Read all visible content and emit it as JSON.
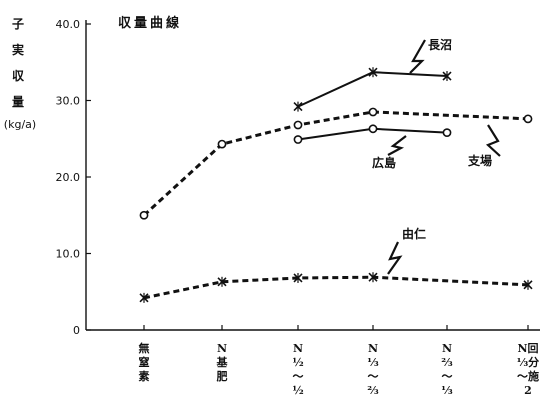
{
  "chart_data": {
    "type": "line",
    "title": "収量曲線",
    "ylabel_chars": [
      "子",
      "実",
      "収",
      "量"
    ],
    "yunit": "(kg/a)",
    "ylim": [
      0,
      40
    ],
    "yticks": [
      {
        "value": 0,
        "label": "0"
      },
      {
        "value": 10,
        "label": "10.0"
      },
      {
        "value": 20,
        "label": "20.0"
      },
      {
        "value": 30,
        "label": "30.0"
      },
      {
        "value": 40,
        "label": "40.0"
      }
    ],
    "categories": [
      {
        "lines": [
          "無",
          "窒",
          "素"
        ]
      },
      {
        "lines": [
          "N",
          "基",
          "肥"
        ]
      },
      {
        "lines": [
          "N",
          "½",
          "〜",
          "½"
        ]
      },
      {
        "lines": [
          "N",
          "⅓",
          "〜",
          "⅔"
        ]
      },
      {
        "lines": [
          "N",
          "⅔",
          "〜",
          "⅓"
        ]
      },
      {
        "lines": [
          "N回",
          "⅓分",
          "〜施",
          "2"
        ]
      }
    ],
    "series": [
      {
        "name": "長沼",
        "style": "solid",
        "marker": "x",
        "points": [
          [
            2,
            29.2
          ],
          [
            3,
            33.7
          ],
          [
            4,
            33.2
          ]
        ]
      },
      {
        "name": "支場",
        "style": "dashed",
        "marker": "circle",
        "points": [
          [
            0,
            15.0
          ],
          [
            1,
            24.3
          ],
          [
            2,
            26.8
          ],
          [
            3,
            28.5
          ],
          [
            5,
            27.6
          ]
        ]
      },
      {
        "name": "広島",
        "style": "solid",
        "marker": "circle",
        "points": [
          [
            2,
            24.9
          ],
          [
            3,
            26.3
          ],
          [
            4,
            25.8
          ]
        ]
      },
      {
        "name": "由仁",
        "style": "dashed",
        "marker": "x",
        "points": [
          [
            0,
            4.2
          ],
          [
            1,
            6.3
          ],
          [
            2,
            6.8
          ],
          [
            3,
            6.9
          ],
          [
            5,
            5.9
          ]
        ]
      }
    ]
  }
}
